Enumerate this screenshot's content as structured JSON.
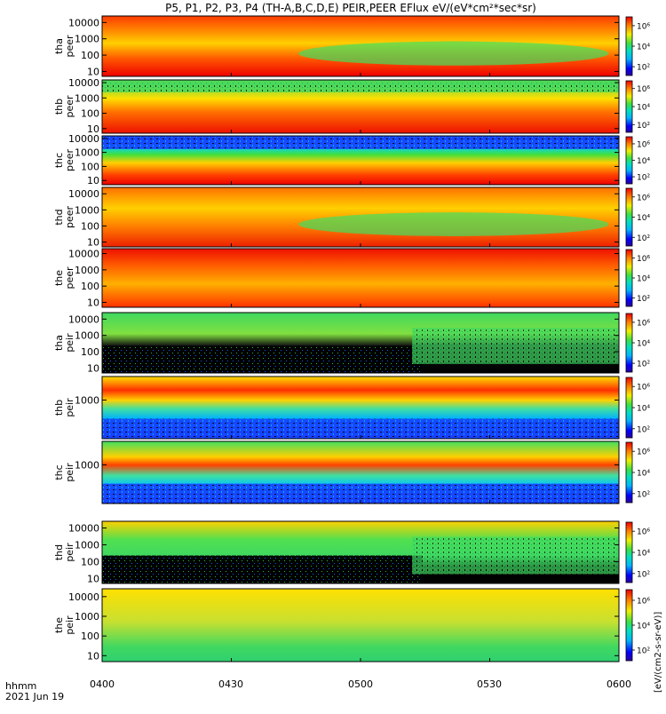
{
  "chart_data": {
    "type": "heatmap",
    "title": "P5, P1, P2, P3, P4 (TH-A,B,C,D,E) PEIR,PEER EFlux eV/(eV*cm²*sec*sr)",
    "x_tick_labels": [
      "0400",
      "0430",
      "0500",
      "0530",
      "0600"
    ],
    "x_corner_label": "hhmm",
    "x_date_label": "2021 Jun 19",
    "xlim": [
      "0400",
      "0600"
    ],
    "colorbar_label": "[eV/(cm2-s-sr-eV)]",
    "colorbar_ticks": [
      "10²",
      "10⁴",
      "10⁶"
    ],
    "yscale": "log",
    "panels": [
      {
        "probe": "tha",
        "species": "peer",
        "ylim": [
          5,
          25000
        ],
        "yticks": [
          "10",
          "100",
          "1000",
          "10000"
        ]
      },
      {
        "probe": "thb",
        "species": "peer",
        "ylim": [
          5,
          15000
        ],
        "yticks": [
          "10",
          "100",
          "1000",
          "10000"
        ]
      },
      {
        "probe": "thc",
        "species": "peer",
        "ylim": [
          5,
          15000
        ],
        "yticks": [
          "10",
          "100",
          "1000",
          "10000"
        ]
      },
      {
        "probe": "thd",
        "species": "peer",
        "ylim": [
          5,
          25000
        ],
        "yticks": [
          "10",
          "100",
          "1000",
          "10000"
        ]
      },
      {
        "probe": "the",
        "species": "peer",
        "ylim": [
          5,
          20000
        ],
        "yticks": [
          "10",
          "100",
          "1000",
          "10000"
        ]
      },
      {
        "probe": "tha",
        "species": "peir",
        "ylim": [
          5,
          25000
        ],
        "yticks": [
          "10",
          "100",
          "1000",
          "10000"
        ]
      },
      {
        "probe": "thb",
        "species": "peir",
        "ylim": [
          5,
          25000
        ],
        "yticks": [
          "1000"
        ]
      },
      {
        "probe": "thc",
        "species": "peir",
        "ylim": [
          5,
          25000
        ],
        "yticks": [
          "1000"
        ]
      },
      {
        "probe": "thd",
        "species": "peir",
        "ylim": [
          5,
          25000
        ],
        "yticks": [
          "10",
          "100",
          "1000",
          "10000"
        ]
      },
      {
        "probe": "the",
        "species": "peir",
        "ylim": [
          5,
          25000
        ],
        "yticks": [
          "10",
          "100",
          "1000",
          "10000"
        ]
      }
    ]
  }
}
